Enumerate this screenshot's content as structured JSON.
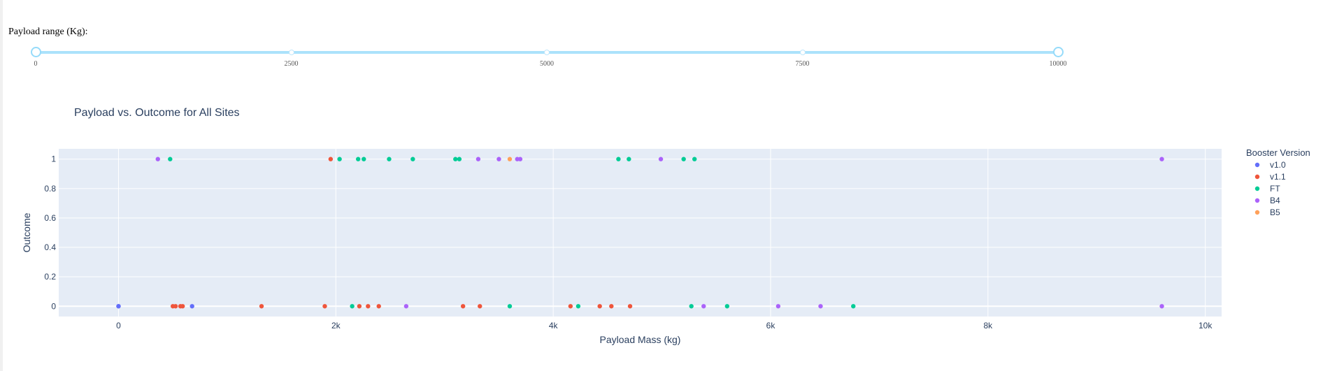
{
  "slider": {
    "label": "Payload range (Kg):",
    "min": 0,
    "max": 10000,
    "marks": [
      "0",
      "2500",
      "5000",
      "7500",
      "10000"
    ],
    "range": [
      0,
      10000
    ],
    "rail_color": "#96dbfa"
  },
  "chart_data": {
    "type": "scatter",
    "title": "Payload vs. Outcome for All Sites",
    "xlabel": "Payload Mass (kg)",
    "ylabel": "Outcome",
    "xlim": [
      -550,
      10150
    ],
    "ylim": [
      -0.07,
      1.07
    ],
    "xticks": [
      0,
      2000,
      4000,
      6000,
      8000,
      10000
    ],
    "xtick_labels": [
      "0",
      "2k",
      "4k",
      "6k",
      "8k",
      "10k"
    ],
    "yticks": [
      0,
      0.2,
      0.4,
      0.6,
      0.8,
      1
    ],
    "ytick_labels": [
      "0",
      "0.2",
      "0.4",
      "0.6",
      "0.8",
      "1"
    ],
    "grid": true,
    "plot_bgcolor": "#e5ecf6",
    "legend": {
      "title": "Booster Version",
      "position": "right"
    },
    "series": [
      {
        "name": "v1.0",
        "color": "#636efa",
        "x": [
          0,
          0,
          677
        ],
        "y": [
          0,
          0,
          0
        ]
      },
      {
        "name": "v1.1",
        "color": "#ef553b",
        "x": [
          500,
          525,
          570,
          590,
          1316,
          1898,
          1952,
          2216,
          2296,
          2395,
          3170,
          3325,
          4159,
          4428,
          4535,
          4707
        ],
        "y": [
          0,
          0,
          0,
          0,
          0,
          0,
          1,
          0,
          0,
          0,
          0,
          0,
          0,
          0,
          0,
          0
        ]
      },
      {
        "name": "FT",
        "color": "#00cc96",
        "x": [
          475,
          2034,
          2150,
          2205,
          2257,
          2490,
          2708,
          3100,
          3136,
          3600,
          4230,
          4600,
          4696,
          5200,
          5271,
          5300,
          5600,
          6761
        ],
        "y": [
          1,
          1,
          0,
          1,
          1,
          1,
          1,
          1,
          1,
          0,
          0,
          1,
          1,
          1,
          0,
          1,
          0,
          0
        ]
      },
      {
        "name": "B4",
        "color": "#ab63fa",
        "x": [
          362,
          2647,
          3310,
          3500,
          3669,
          3696,
          4990,
          5384,
          6070,
          6460,
          9600,
          9600
        ],
        "y": [
          1,
          0,
          1,
          1,
          1,
          1,
          1,
          0,
          0,
          0,
          1,
          0
        ]
      },
      {
        "name": "B5",
        "color": "#ffa15a",
        "x": [
          3600
        ],
        "y": [
          1
        ]
      }
    ]
  }
}
